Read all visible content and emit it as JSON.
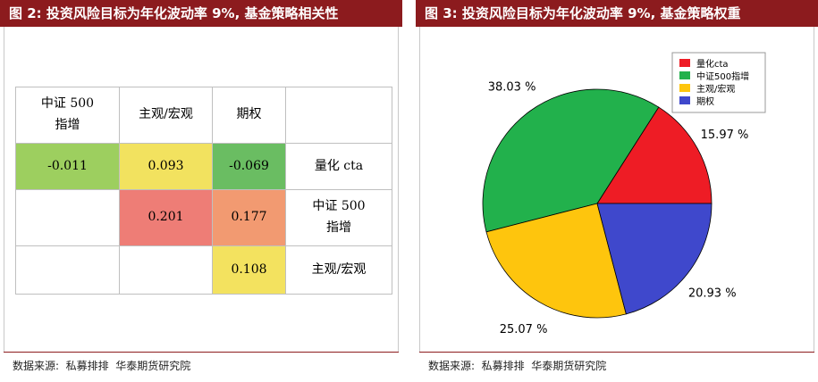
{
  "left": {
    "title": "图 2: 投资风险目标为年化波动率 9%, 基金策略相关性",
    "source": "数据来源:  私募排排  华泰期货研究院",
    "table": {
      "headers": [
        "中证 500 指增",
        "主观/宏观",
        "期权",
        ""
      ],
      "rows": [
        {
          "cells": [
            "-0.011",
            "0.093",
            "-0.069",
            "量化 cta"
          ],
          "colors": [
            "#9dcf5f",
            "#f2e25f",
            "#6abd62",
            "#ffffff"
          ]
        },
        {
          "cells": [
            "",
            "0.201",
            "0.177",
            "中证 500 指增"
          ],
          "colors": [
            "#ffffff",
            "#ee7d76",
            "#f29a71",
            "#ffffff"
          ]
        },
        {
          "cells": [
            "",
            "",
            "0.108",
            "主观/宏观"
          ],
          "colors": [
            "#ffffff",
            "#ffffff",
            "#f3e25f",
            "#ffffff"
          ]
        }
      ]
    }
  },
  "right": {
    "title": "图 3: 投资风险目标为年化波动率 9%, 基金策略权重",
    "source": "数据来源:  私募排排  华泰期货研究院",
    "chart_data": {
      "type": "pie",
      "title": "",
      "slices": [
        {
          "label": "量化cta",
          "value": 15.97,
          "pct_label": "15.97 %",
          "color": "#ee1c25"
        },
        {
          "label": "中证500指增",
          "value": 38.03,
          "pct_label": "38.03 %",
          "color": "#22b14c"
        },
        {
          "label": "主观/宏观",
          "value": 25.07,
          "pct_label": "25.07 %",
          "color": "#fec50d"
        },
        {
          "label": "期权",
          "value": 20.93,
          "pct_label": "20.93 %",
          "color": "#3f48cc"
        }
      ],
      "legend_position": "top-right"
    }
  }
}
